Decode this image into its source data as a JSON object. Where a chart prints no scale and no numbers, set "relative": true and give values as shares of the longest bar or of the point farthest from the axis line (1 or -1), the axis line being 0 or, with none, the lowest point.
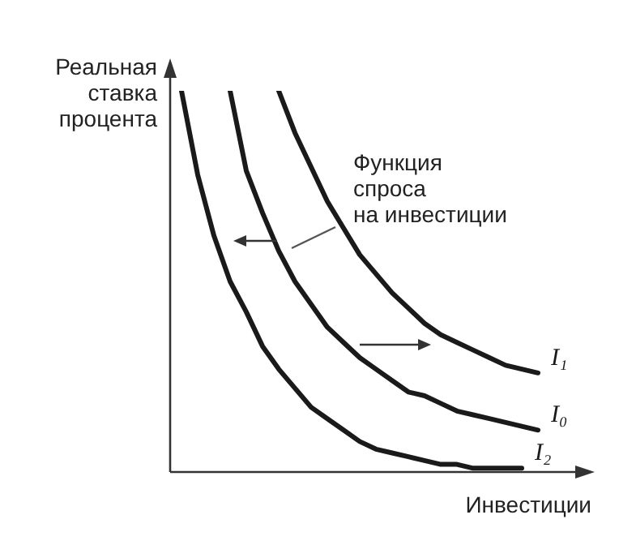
{
  "chart_data": {
    "type": "line",
    "relative": true,
    "legend": false,
    "marker": "none",
    "line_style": "solid",
    "xlabel": "Инвестиции",
    "ylabel": "Реальная\nставка\nпроцента",
    "annotations": [
      "Функция\nспроса\nна инвестиции"
    ],
    "categories": [
      null,
      null,
      null,
      null,
      null,
      null,
      null,
      null,
      null,
      null,
      null,
      null,
      null,
      null,
      null,
      null,
      null,
      null,
      null,
      null,
      null,
      null,
      null
    ],
    "series": [
      {
        "name": "I₁",
        "color": "#1a1a1a",
        "values": [
          null,
          null,
          null,
          null,
          null,
          null,
          1.0,
          0.89,
          0.8,
          0.71,
          0.64,
          0.57,
          0.52,
          0.47,
          0.43,
          0.39,
          0.36,
          0.34,
          0.32,
          0.3,
          0.28,
          0.27,
          0.26
        ]
      },
      {
        "name": "I₀",
        "color": "#1a1a1a",
        "values": [
          null,
          null,
          null,
          1.0,
          0.79,
          0.68,
          0.58,
          0.5,
          0.44,
          0.38,
          0.34,
          0.3,
          0.27,
          0.24,
          0.21,
          0.2,
          0.18,
          0.16,
          0.15,
          0.14,
          0.13,
          0.12,
          0.11
        ]
      },
      {
        "name": "I₂",
        "color": "#1a1a1a",
        "values": [
          1.0,
          0.78,
          0.62,
          0.5,
          0.42,
          0.33,
          0.27,
          0.22,
          0.17,
          0.14,
          0.11,
          0.08,
          0.06,
          0.05,
          0.04,
          0.03,
          0.02,
          0.02,
          0.01,
          0.01,
          0.01,
          0.01,
          null
        ]
      }
    ]
  }
}
